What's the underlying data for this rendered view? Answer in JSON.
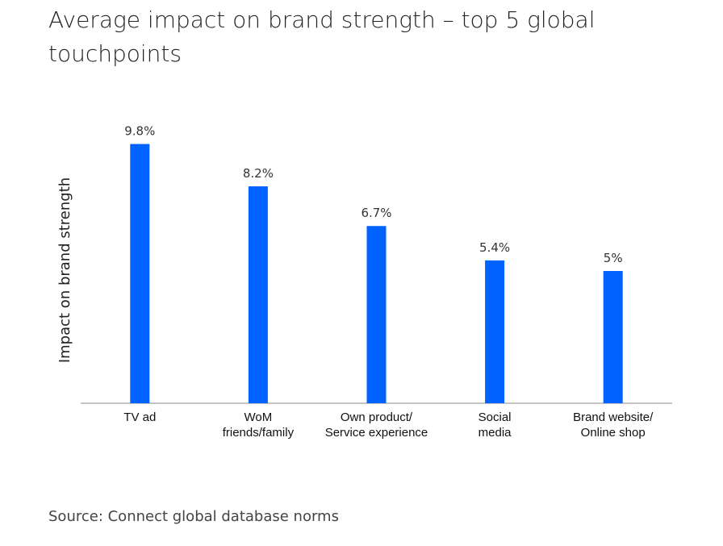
{
  "title": "Average impact on brand strength – top 5 global touchpoints",
  "source": "Source: Connect global database norms",
  "chart_data": {
    "type": "bar",
    "title": "Average impact on brand strength – top 5 global touchpoints",
    "xlabel": "",
    "ylabel": "Impact on brand strength",
    "categories": [
      [
        "TV ad"
      ],
      [
        "WoM",
        "friends/family"
      ],
      [
        "Own product/",
        "Service experience"
      ],
      [
        "Social",
        "media"
      ],
      [
        "Brand website/",
        "Online shop"
      ]
    ],
    "values": [
      9.8,
      8.2,
      6.7,
      5.4,
      5.0
    ],
    "value_labels": [
      "9.8%",
      "8.2%",
      "6.7%",
      "5.4%",
      "5%"
    ],
    "ylim": [
      0,
      10
    ],
    "grid": false,
    "legend": "none",
    "bar_color": "#0062ff",
    "axis_color": "#b0b0b0"
  }
}
